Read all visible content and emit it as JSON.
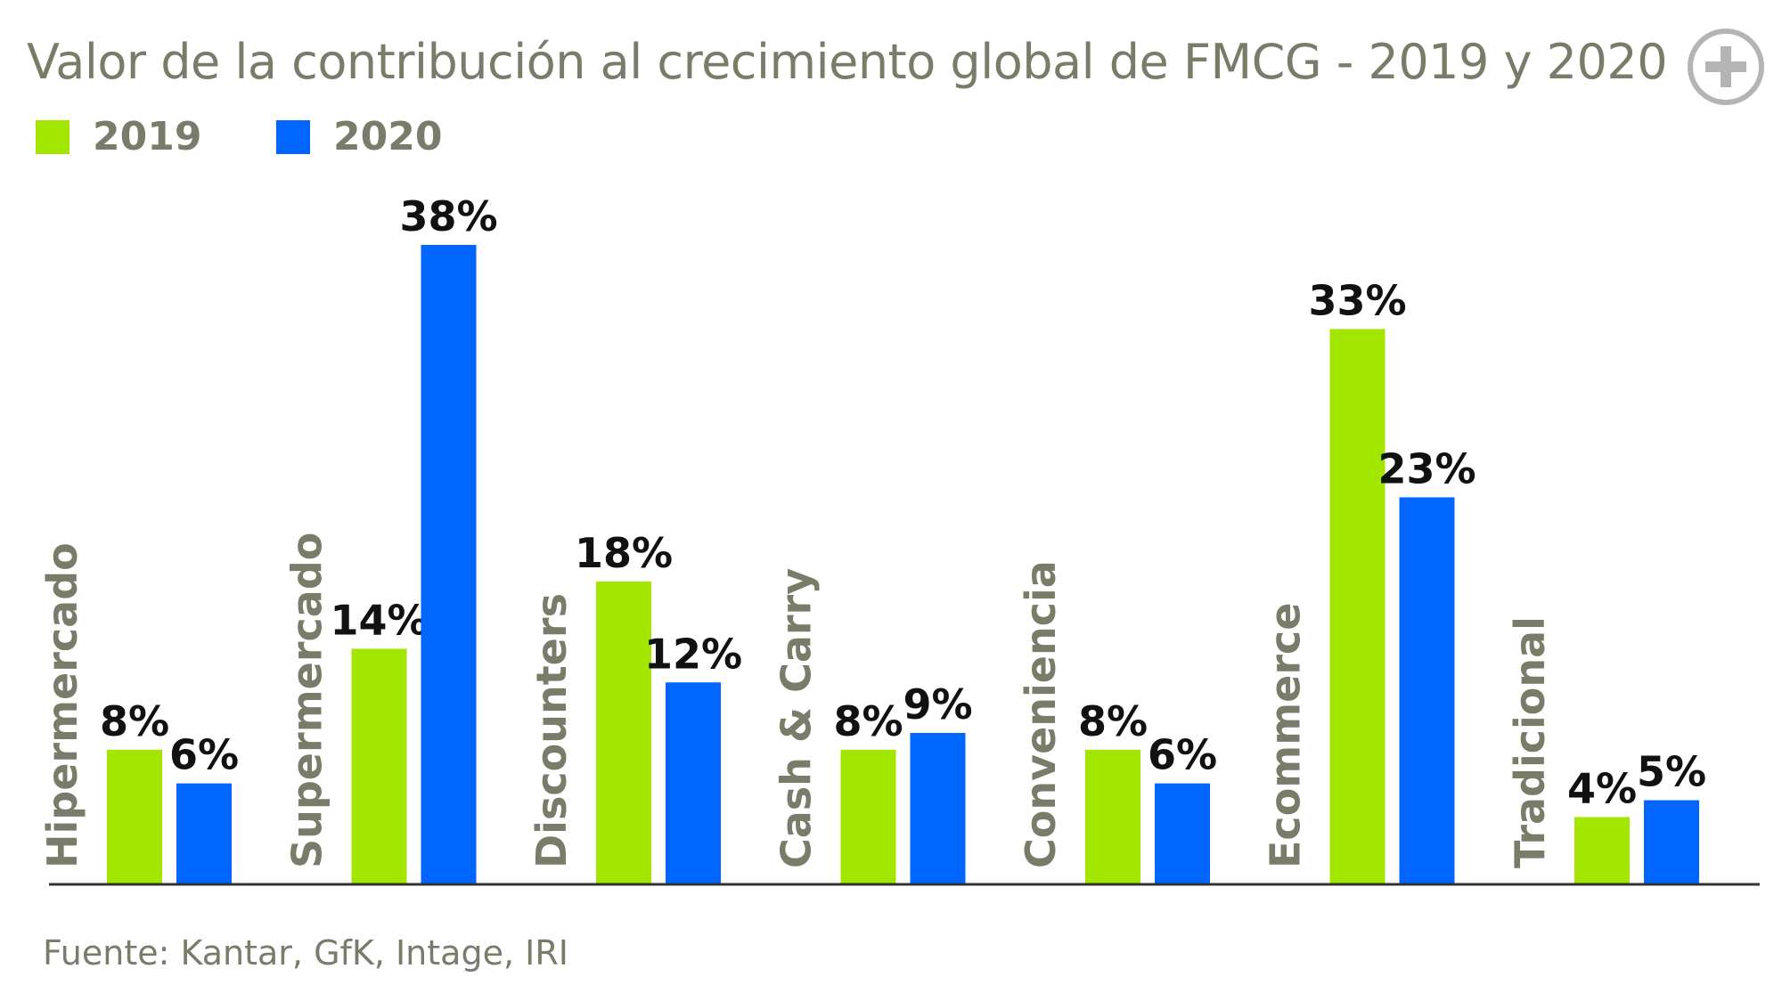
{
  "header": {
    "title": "Valor de la contribución al crecimiento global de FMCG - 2019 y 2020",
    "expand_icon": "plus-circle-icon"
  },
  "footer": {
    "source": "Fuente: Kantar, GfK, Intage, IRI"
  },
  "colors": {
    "series_2019": "#a3e600",
    "series_2020": "#0066ff",
    "text_muted": "#7b7b6a",
    "axis": "#333333"
  },
  "chart_data": {
    "type": "bar",
    "title": "Valor de la contribución al crecimiento global de FMCG - 2019 y 2020",
    "categories": [
      "Hipermercado",
      "Supermercado",
      "Discounters",
      "Cash & Carry",
      "Conveniencia",
      "Ecommerce",
      "Tradicional"
    ],
    "series": [
      {
        "name": "2019",
        "values": [
          8,
          14,
          18,
          8,
          8,
          33,
          4
        ],
        "labels": [
          "8%",
          "14%",
          "18%",
          "8%",
          "8%",
          "33%",
          "4%"
        ]
      },
      {
        "name": "2020",
        "values": [
          6,
          38,
          12,
          9,
          6,
          23,
          5
        ],
        "labels": [
          "6%",
          "38%",
          "12%",
          "9%",
          "6%",
          "23%",
          "5%"
        ]
      }
    ],
    "ylim": [
      0,
      38
    ],
    "grid": false,
    "legend_position": "top-left",
    "xlabel": "",
    "ylabel": ""
  }
}
